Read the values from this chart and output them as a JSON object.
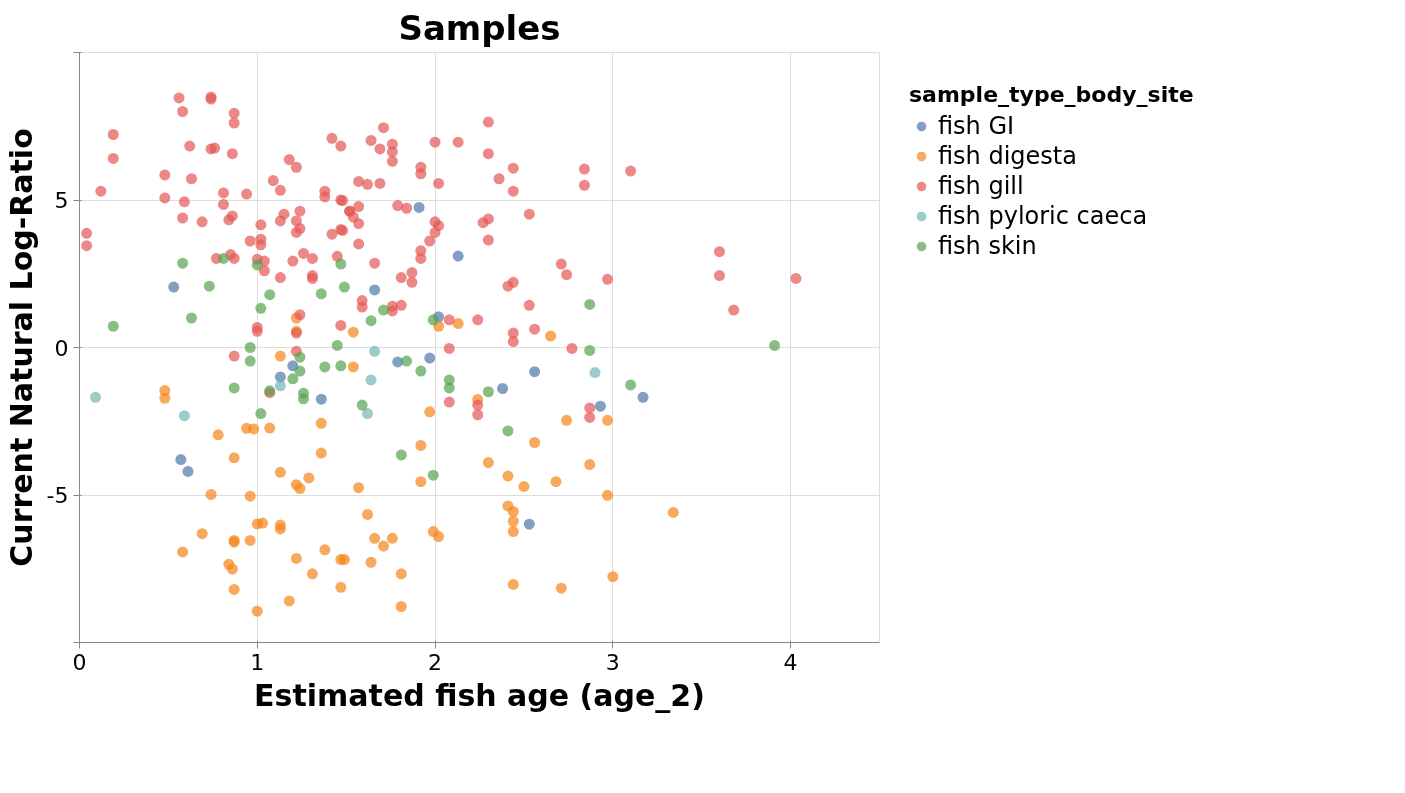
{
  "chart_data": {
    "type": "scatter",
    "title": "Samples",
    "xlabel": "Estimated fish age (age_2)",
    "ylabel": "Current Natural Log-Ratio",
    "legend_title": "sample_type_body_site",
    "legend": "right",
    "grid": true,
    "marker": "circle",
    "xlim": [
      0,
      4.5
    ],
    "ylim": [
      -10,
      10
    ],
    "xticks": [
      0,
      1,
      2,
      3,
      4
    ],
    "yticks": [
      {
        "value": -10,
        "label": null
      },
      -5,
      0,
      5,
      {
        "value": 10,
        "label": null
      }
    ],
    "series": [
      {
        "name": "fish GI",
        "color": "#4c78a8",
        "x": [
          0.53,
          0.57,
          0.61,
          1.91,
          2.13,
          1.66,
          2.02,
          1.2,
          1.13,
          1.36,
          1.79,
          1.97,
          2.56,
          2.38,
          2.93,
          2.53,
          3.17
        ],
        "values": [
          2.05,
          -3.8,
          -4.2,
          4.75,
          3.1,
          1.95,
          1.04,
          -0.62,
          -1.0,
          -1.75,
          -0.49,
          -0.36,
          -0.82,
          -1.39,
          -1.99,
          -5.99,
          -1.69
        ]
      },
      {
        "name": "fish digesta",
        "color": "#f58518",
        "x": [
          0.48,
          0.48,
          0.78,
          0.94,
          0.98,
          1.07,
          0.87,
          0.58,
          0.74,
          0.96,
          0.69,
          0.84,
          0.86,
          0.87,
          0.87,
          0.96,
          1.0,
          1.03,
          0.87,
          1.0,
          1.13,
          1.13,
          1.13,
          1.22,
          1.24,
          1.29,
          1.36,
          1.36,
          1.22,
          1.38,
          1.31,
          1.47,
          1.49,
          1.47,
          1.18,
          1.13,
          1.54,
          1.97,
          1.92,
          1.92,
          1.57,
          1.62,
          1.66,
          1.71,
          1.76,
          1.64,
          1.81,
          1.81,
          1.99,
          2.02,
          2.24,
          2.56,
          2.3,
          2.41,
          2.5,
          2.68,
          2.87,
          2.74,
          2.97,
          2.97,
          2.41,
          2.44,
          2.44,
          2.44,
          2.44,
          2.71,
          3.0,
          3.34,
          1.54,
          2.02,
          2.13,
          2.65,
          1.22,
          1.22
        ],
        "values": [
          -1.46,
          -1.72,
          -2.96,
          -2.74,
          -2.76,
          -2.73,
          -3.74,
          -6.93,
          -4.98,
          -5.04,
          -6.31,
          -7.35,
          -7.51,
          -6.54,
          -6.6,
          -6.54,
          -5.98,
          -5.95,
          -8.2,
          -8.94,
          -6.02,
          -6.15,
          -4.23,
          -4.65,
          -4.78,
          -4.42,
          -2.57,
          -3.58,
          -7.15,
          -6.86,
          -7.67,
          -7.19,
          -7.19,
          -8.13,
          -8.59,
          -0.29,
          -0.66,
          -2.18,
          -3.32,
          -4.55,
          -4.75,
          -5.66,
          -6.47,
          -6.73,
          -6.47,
          -7.28,
          -7.67,
          -8.78,
          -6.24,
          -6.41,
          -1.76,
          -3.22,
          -3.9,
          -4.36,
          -4.71,
          -4.55,
          -3.97,
          -2.47,
          -2.47,
          -5.01,
          -5.37,
          -5.56,
          -5.89,
          -6.24,
          -8.03,
          -8.16,
          -7.77,
          -5.59,
          0.52,
          0.72,
          0.81,
          0.39,
          1.0,
          0.55
        ]
      },
      {
        "name": "fish gill",
        "color": "#e45756",
        "x": [
          0.56,
          0.74,
          0.74,
          0.58,
          0.87,
          0.87,
          0.19,
          0.19,
          0.62,
          0.74,
          0.76,
          0.86,
          0.48,
          0.63,
          0.12,
          0.48,
          0.59,
          0.81,
          0.81,
          0.94,
          1.09,
          1.13,
          1.18,
          1.22,
          1.42,
          1.47,
          1.38,
          1.38,
          1.47,
          0.58,
          0.69,
          0.84,
          0.86,
          0.04,
          0.04,
          1.02,
          0.96,
          1.02,
          1.02,
          1.15,
          1.24,
          1.13,
          1.22,
          1.22,
          1.24,
          1.42,
          1.47,
          1.52,
          0.77,
          0.85,
          0.87,
          1.0,
          1.04,
          1.04,
          1.2,
          1.26,
          1.31,
          1.31,
          1.31,
          1.45,
          1.13,
          1.0,
          1.0,
          1.22,
          1.24,
          0.87,
          1.22,
          1.07,
          2.3,
          1.71,
          1.64,
          1.76,
          1.69,
          1.76,
          1.76,
          2.0,
          2.13,
          2.3,
          1.92,
          1.92,
          1.57,
          1.62,
          1.69,
          2.02,
          2.44,
          2.44,
          2.36,
          2.84,
          2.84,
          1.48,
          1.52,
          1.57,
          1.54,
          1.57,
          1.48,
          1.57,
          1.79,
          1.84,
          2.0,
          2.02,
          2.0,
          1.97,
          1.92,
          1.92,
          2.27,
          2.3,
          2.3,
          2.53,
          1.66,
          1.81,
          1.87,
          1.87,
          1.59,
          1.59,
          1.76,
          1.76,
          1.81,
          2.08,
          2.24,
          2.71,
          2.74,
          2.97,
          2.41,
          2.44,
          2.53,
          2.56,
          2.44,
          2.44,
          2.08,
          2.77,
          2.08,
          2.24,
          2.24,
          2.87,
          2.87,
          1.47,
          3.1,
          3.6,
          3.6,
          3.68,
          4.03
        ],
        "values": [
          8.46,
          8.49,
          8.42,
          8.0,
          7.94,
          7.61,
          7.22,
          6.41,
          6.83,
          6.73,
          6.76,
          6.57,
          5.85,
          5.72,
          5.3,
          5.07,
          4.94,
          5.24,
          4.85,
          5.2,
          5.66,
          5.33,
          6.37,
          6.11,
          7.09,
          6.83,
          5.3,
          5.11,
          5.0,
          4.39,
          4.26,
          4.33,
          4.46,
          3.87,
          3.45,
          4.16,
          3.61,
          3.67,
          3.48,
          4.52,
          4.62,
          4.29,
          4.29,
          3.9,
          4.03,
          3.84,
          4.0,
          4.62,
          3.02,
          3.15,
          3.02,
          2.99,
          2.93,
          2.6,
          2.93,
          3.19,
          3.02,
          2.44,
          2.34,
          3.09,
          2.37,
          0.68,
          0.55,
          0.49,
          1.11,
          -0.29,
          -0.13,
          -1.53,
          7.64,
          7.45,
          7.02,
          6.89,
          6.73,
          6.63,
          6.31,
          6.96,
          6.96,
          6.57,
          6.11,
          5.89,
          5.63,
          5.53,
          5.56,
          5.56,
          6.08,
          5.3,
          5.72,
          6.05,
          5.5,
          4.98,
          4.62,
          4.78,
          4.42,
          4.2,
          3.97,
          3.51,
          4.81,
          4.72,
          4.26,
          4.13,
          3.9,
          3.61,
          3.28,
          3.02,
          4.23,
          4.36,
          3.64,
          4.52,
          2.86,
          2.37,
          2.54,
          2.21,
          1.59,
          1.37,
          1.4,
          1.24,
          1.43,
          0.94,
          0.94,
          2.83,
          2.47,
          2.31,
          2.08,
          2.21,
          1.43,
          0.62,
          0.49,
          0.2,
          -0.03,
          -0.03,
          -1.85,
          -1.95,
          -2.28,
          -2.05,
          -2.37,
          0.75,
          5.98,
          3.25,
          2.44,
          1.27,
          2.34
        ]
      },
      {
        "name": "fish pyloric caeca",
        "color": "#72b7b2",
        "x": [
          0.09,
          0.59,
          1.13,
          1.66,
          1.64,
          1.62,
          2.9
        ],
        "values": [
          -1.69,
          -2.31,
          -1.3,
          -0.13,
          -1.1,
          -2.24,
          -0.85
        ]
      },
      {
        "name": "fish skin",
        "color": "#54a24b",
        "x": [
          0.19,
          0.58,
          0.73,
          0.63,
          0.81,
          1.0,
          1.07,
          1.02,
          0.96,
          1.36,
          1.47,
          1.49,
          1.45,
          2.87,
          2.87,
          1.71,
          1.64,
          1.99,
          0.96,
          0.87,
          1.07,
          1.02,
          1.24,
          1.24,
          1.2,
          1.26,
          1.26,
          1.38,
          1.47,
          1.84,
          1.92,
          2.08,
          2.08,
          2.3,
          1.59,
          2.41,
          1.81,
          1.99,
          3.1,
          3.91
        ],
        "values": [
          0.72,
          2.86,
          2.08,
          1.0,
          3.02,
          2.8,
          1.79,
          1.33,
          0.0,
          1.82,
          2.83,
          2.05,
          0.07,
          1.46,
          -0.1,
          1.27,
          0.91,
          0.94,
          -0.46,
          -1.37,
          -1.47,
          -2.24,
          -0.33,
          -0.8,
          -1.06,
          -1.55,
          -1.74,
          -0.66,
          -0.62,
          -0.46,
          -0.8,
          -1.1,
          -1.37,
          -1.5,
          -1.95,
          -2.83,
          -3.64,
          -4.33,
          -1.27,
          0.07
        ]
      }
    ]
  }
}
